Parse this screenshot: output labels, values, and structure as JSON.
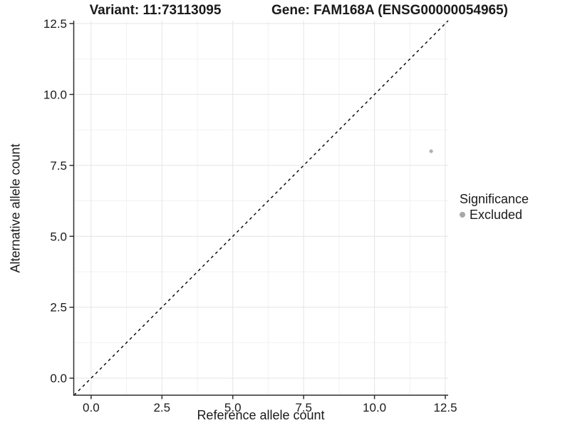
{
  "titles": {
    "variant": "Variant: 11:73113095",
    "gene": "Gene: FAM168A (ENSG00000054965)"
  },
  "chart_data": {
    "type": "scatter",
    "title_left": "Variant: 11:73113095",
    "title_right": "Gene: FAM168A (ENSG00000054965)",
    "xlabel": "Reference allele count",
    "ylabel": "Alternative allele count",
    "xlim": [
      -0.6,
      12.6
    ],
    "ylim": [
      -0.6,
      12.6
    ],
    "x_tick_values": [
      0,
      2.5,
      5,
      7.5,
      10,
      12.5
    ],
    "x_tick_labels": [
      "0.0",
      "2.5",
      "5.0",
      "7.5",
      "10.0",
      "12.5"
    ],
    "y_tick_values": [
      0,
      2.5,
      5,
      7.5,
      10,
      12.5
    ],
    "y_tick_labels": [
      "0.0",
      "2.5",
      "5.0",
      "7.5",
      "10.0",
      "12.5"
    ],
    "minor_tick_values": [
      1.25,
      3.75,
      6.25,
      8.75,
      11.25
    ],
    "grid": true,
    "reference_line": {
      "kind": "identity",
      "from": -0.6,
      "to": 12.6,
      "style": "dashed",
      "color": "#000000"
    },
    "series": [
      {
        "name": "Excluded",
        "color": "#b0b0b0",
        "points": [
          {
            "x": 12,
            "y": 8
          }
        ]
      }
    ],
    "legend": {
      "title": "Significance",
      "position": "right",
      "items": [
        {
          "label": "Excluded",
          "color": "#a8a8a8"
        }
      ]
    },
    "colors": {
      "grid_major": "#e4e4e4",
      "grid_minor": "#f2f2f2",
      "axis_line": "#2f2f2f",
      "tick_text": "#1a1a1a",
      "panel_bg": "#ffffff"
    }
  }
}
